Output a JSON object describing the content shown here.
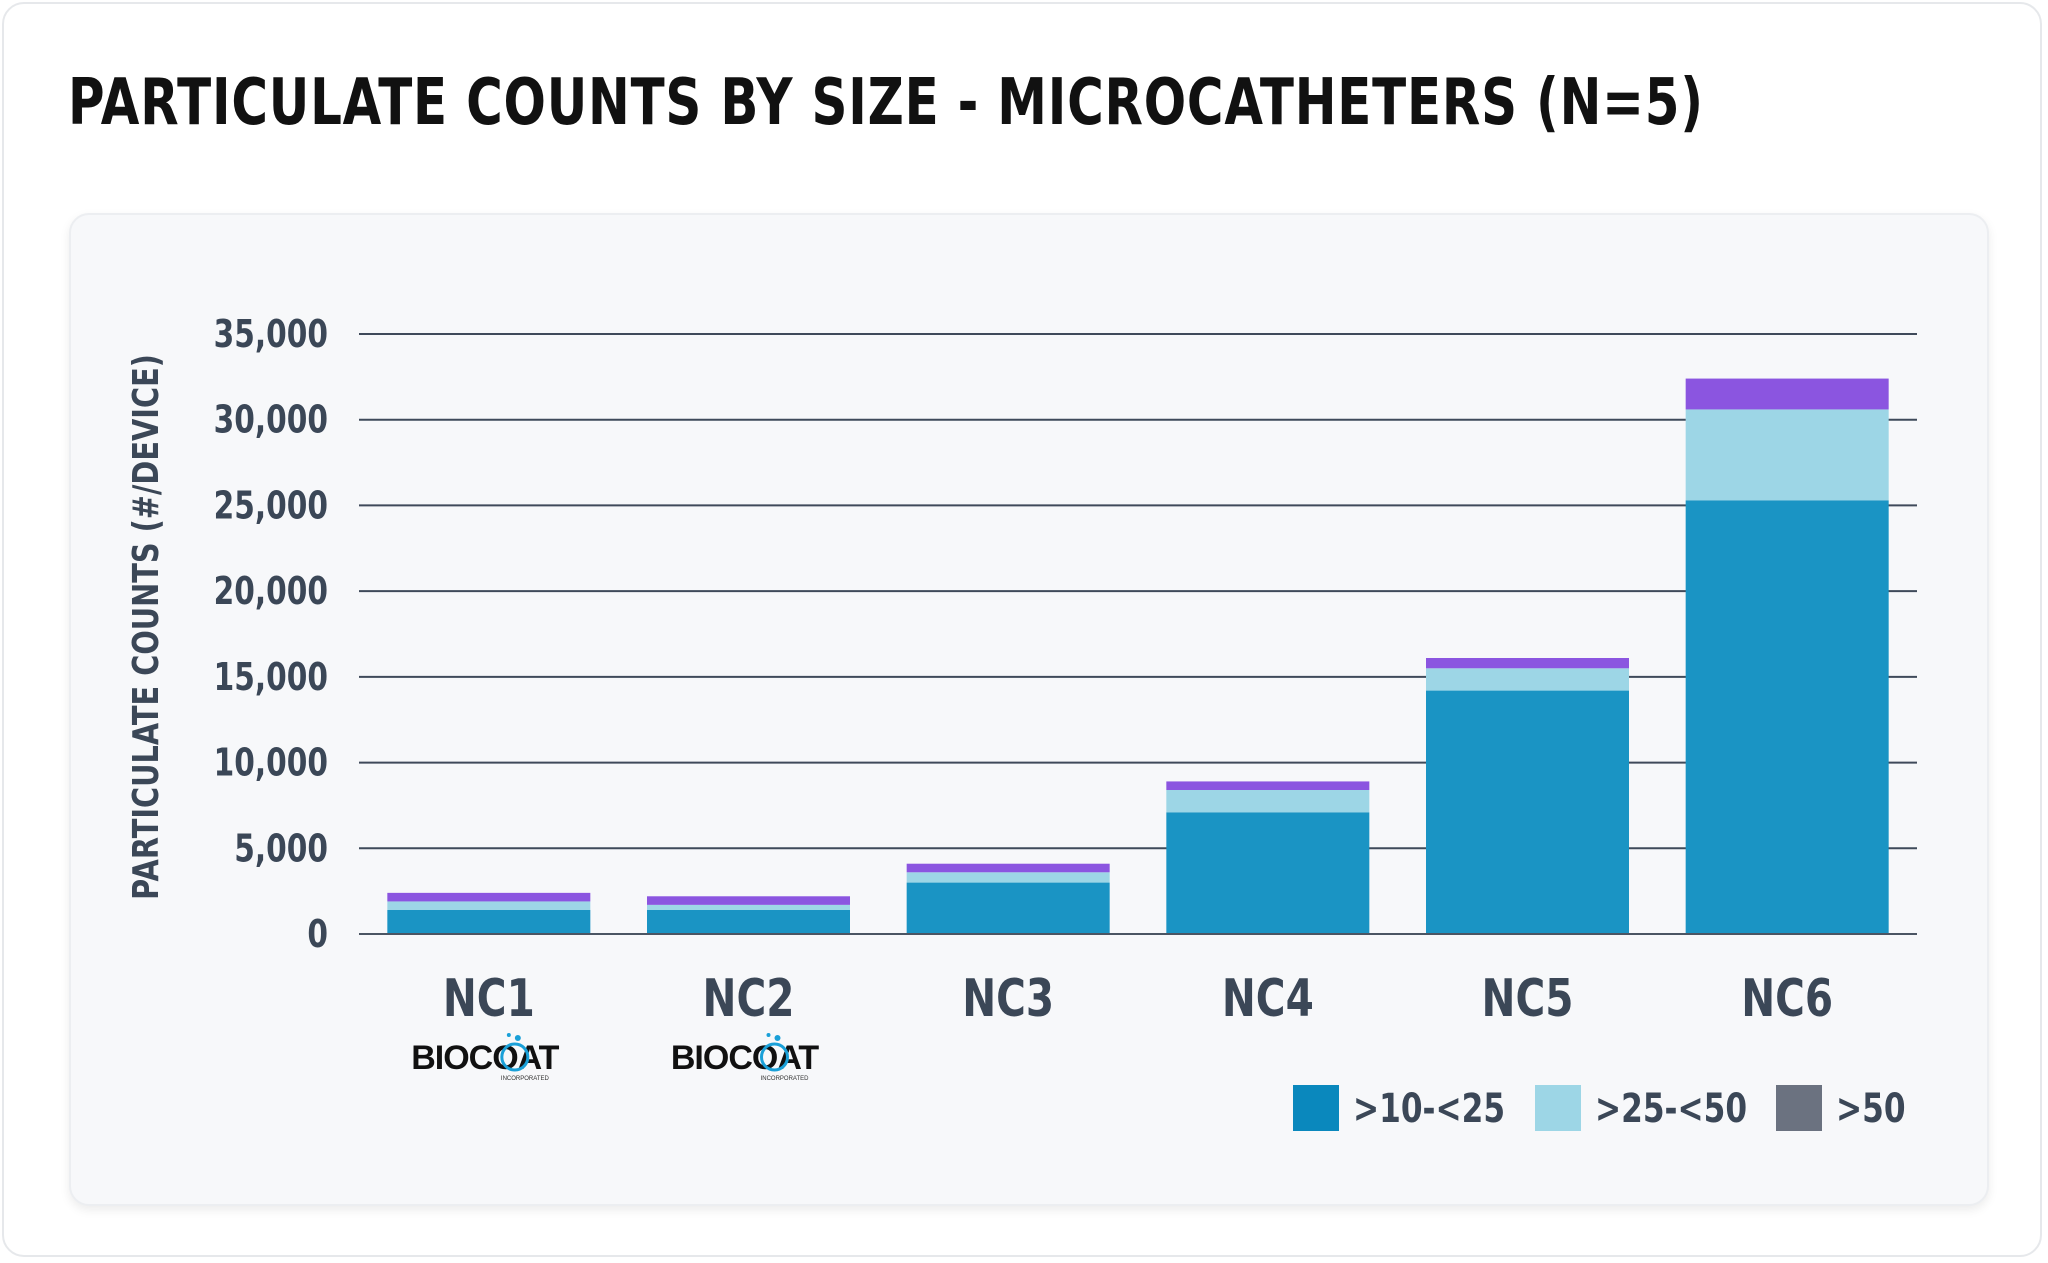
{
  "chart_data": {
    "type": "bar",
    "stacked": true,
    "title": "PARTICULATE COUNTS BY SIZE - MICROCATHETERS (N=5)",
    "xlabel": "",
    "ylabel": "PARTICULATE COUNTS (#/DEVICE)",
    "ylim": [
      0,
      35000
    ],
    "yticks": [
      0,
      5000,
      10000,
      15000,
      20000,
      25000,
      30000,
      35000
    ],
    "ytick_labels": [
      "0",
      "5,000",
      "10,000",
      "15,000",
      "20,000",
      "25,000",
      "30,000",
      "35,000"
    ],
    "grid": true,
    "categories": [
      "NC1",
      "NC2",
      "NC3",
      "NC4",
      "NC5",
      "NC6"
    ],
    "series": [
      {
        "name": ">10-<25",
        "values": [
          1400,
          1400,
          3000,
          7100,
          14200,
          25300
        ]
      },
      {
        "name": ">25-<50",
        "values": [
          500,
          300,
          600,
          1300,
          1300,
          5300
        ]
      },
      {
        "name": ">50",
        "values": [
          500,
          500,
          500,
          500,
          600,
          1800
        ]
      }
    ],
    "series_colors": {
      "bars": [
        "#1a94c4",
        "#9dd6e6",
        "#8b55e0"
      ],
      "legend": [
        "#0a88bd",
        "#9dd6e6",
        "#6b7280"
      ]
    },
    "legend_position": "bottom-right",
    "category_badges": {
      "NC1": {
        "brand": "BIOCOAT",
        "sub": "INCORPORATED"
      },
      "NC2": {
        "brand": "BIOCOAT",
        "sub": "INCORPORATED"
      }
    }
  }
}
